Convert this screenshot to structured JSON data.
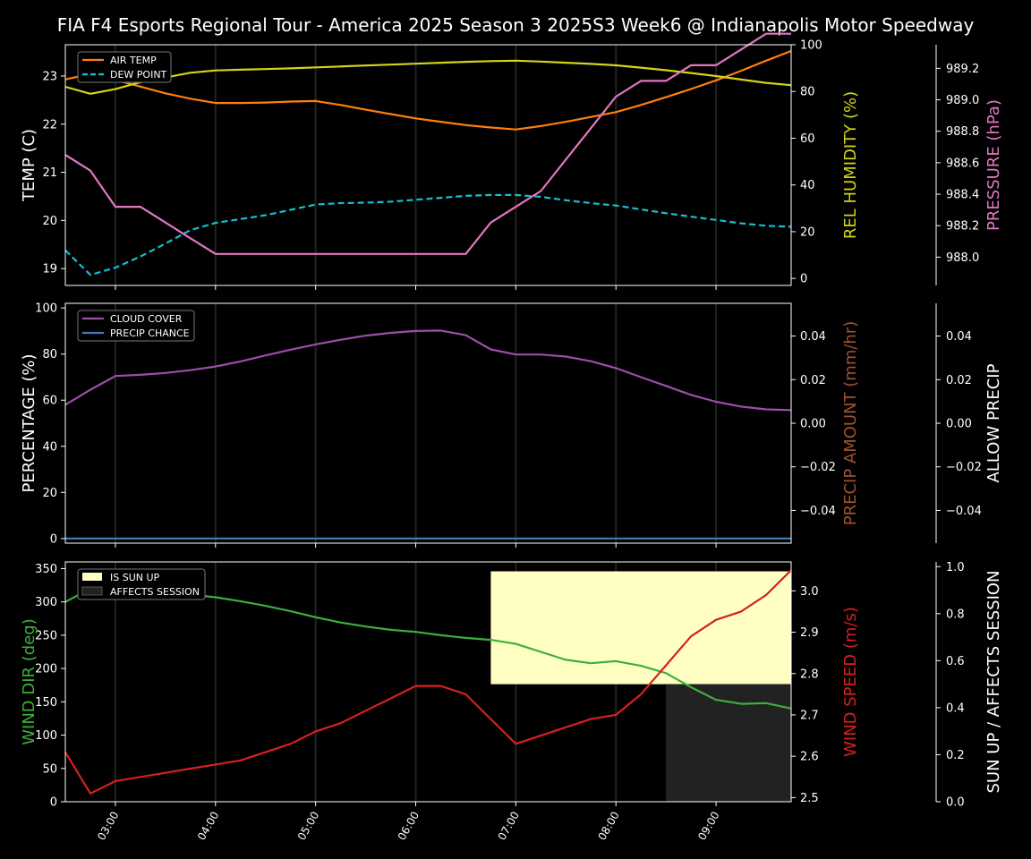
{
  "title": "FIA F4 Esports Regional Tour - America 2025 Season 3 2025S3 Week6 @ Indianapolis Motor Speedway",
  "colors": {
    "background": "#000000",
    "axis": "#ffffff",
    "air_temp": "#ff7f0e",
    "dew_point": "#17becf",
    "humidity": "#d4d419",
    "pressure": "#e377c2",
    "cloud": "#9b4fa8",
    "precip_chance": "#3d7fbf",
    "precip_amount": "#a0522d",
    "wind_dir": "#3cb03c",
    "wind_speed": "#d62020",
    "sun_up": "#ffffc4",
    "affects_session": "#222222"
  },
  "x_ticks": [
    "03:00",
    "04:00",
    "05:00",
    "06:00",
    "07:00",
    "08:00",
    "09:00"
  ],
  "chart_data": [
    {
      "type": "line",
      "x_hours": [
        2.5,
        2.75,
        3.0,
        3.25,
        3.5,
        3.75,
        4.0,
        4.25,
        4.5,
        4.75,
        5.0,
        5.25,
        5.5,
        5.75,
        6.0,
        6.25,
        6.5,
        6.75,
        7.0,
        7.25,
        7.5,
        7.75,
        8.0,
        8.25,
        8.5,
        8.75,
        9.0,
        9.25,
        9.5,
        9.75
      ],
      "xlim": [
        2.5,
        9.75
      ],
      "ylabel": "TEMP (C)",
      "ylim": [
        18.65,
        23.65
      ],
      "yticks": [
        19,
        20,
        21,
        22,
        23
      ],
      "y2label": "REL HUMIDITY (%)",
      "y2lim": [
        -3,
        100
      ],
      "y2ticks": [
        0,
        20,
        40,
        60,
        80,
        100
      ],
      "y3label": "PRESSURE (hPa)",
      "y3lim": [
        987.82,
        989.35
      ],
      "y3ticks": [
        "988.0",
        "988.2",
        "988.4",
        "988.6",
        "988.8",
        "989.0",
        "989.2"
      ],
      "legend": "top-left",
      "series": [
        {
          "name": "AIR TEMP",
          "axis": "left",
          "style": "solid",
          "color": "air_temp",
          "values": [
            22.93,
            23.04,
            22.92,
            22.78,
            22.64,
            22.53,
            22.44,
            22.44,
            22.45,
            22.47,
            22.48,
            22.4,
            22.3,
            22.21,
            22.12,
            22.05,
            21.98,
            21.93,
            21.89,
            21.96,
            22.05,
            22.15,
            22.25,
            22.4,
            22.56,
            22.73,
            22.91,
            23.11,
            23.32,
            23.52
          ]
        },
        {
          "name": "DEW POINT",
          "axis": "left",
          "style": "dashed",
          "color": "dew_point",
          "values": [
            19.38,
            18.87,
            19.02,
            19.25,
            19.52,
            19.8,
            19.95,
            20.03,
            20.11,
            20.22,
            20.33,
            20.36,
            20.37,
            20.39,
            20.43,
            20.47,
            20.51,
            20.53,
            20.53,
            20.49,
            20.42,
            20.36,
            20.31,
            20.23,
            20.15,
            20.08,
            20.01,
            19.94,
            19.89,
            19.87
          ]
        },
        {
          "name": "REL HUMIDITY",
          "axis": "right1",
          "style": "solid",
          "color": "humidity",
          "values": [
            82,
            79,
            81,
            84,
            86,
            88,
            89,
            89.3,
            89.6,
            89.9,
            90.3,
            90.7,
            91.1,
            91.5,
            91.9,
            92.3,
            92.7,
            93,
            93.2,
            92.8,
            92.3,
            91.8,
            91.2,
            90.2,
            89.1,
            87.9,
            86.6,
            85.1,
            83.7,
            82.7
          ]
        },
        {
          "name": "PRESSURE",
          "axis": "right2",
          "style": "solid",
          "color": "pressure",
          "values": [
            988.65,
            988.55,
            988.32,
            988.32,
            988.22,
            988.12,
            988.02,
            988.02,
            988.02,
            988.02,
            988.02,
            988.02,
            988.02,
            988.02,
            988.02,
            988.02,
            988.02,
            988.22,
            988.32,
            988.42,
            988.62,
            988.82,
            989.02,
            989.12,
            989.12,
            989.22,
            989.22,
            989.32,
            989.42,
            989.42
          ]
        }
      ]
    },
    {
      "type": "line",
      "x_hours": [
        2.5,
        2.75,
        3.0,
        3.25,
        3.5,
        3.75,
        4.0,
        4.25,
        4.5,
        4.75,
        5.0,
        5.25,
        5.5,
        5.75,
        6.0,
        6.25,
        6.5,
        6.75,
        7.0,
        7.25,
        7.5,
        7.75,
        8.0,
        8.25,
        8.5,
        8.75,
        9.0,
        9.25,
        9.5,
        9.75
      ],
      "xlim": [
        2.5,
        9.75
      ],
      "ylabel": "PERCENTAGE (%)",
      "ylim": [
        -2,
        102
      ],
      "yticks": [
        0,
        20,
        40,
        60,
        80,
        100
      ],
      "y2label": "PRECIP AMOUNT (mm/hr)",
      "y2lim": [
        -0.055,
        0.055
      ],
      "y2ticks": [
        "−0.04",
        "−0.02",
        "0.00",
        "0.02",
        "0.04"
      ],
      "y3label": "ALLOW PRECIP",
      "y3lim": [
        -0.055,
        0.055
      ],
      "y3ticks": [
        "−0.04",
        "−0.02",
        "0.00",
        "0.02",
        "0.04"
      ],
      "legend": "top-left",
      "series": [
        {
          "name": "CLOUD COVER",
          "axis": "left",
          "style": "solid",
          "color": "cloud",
          "values": [
            58,
            64.5,
            70.5,
            71,
            71.8,
            73,
            74.6,
            76.8,
            79.4,
            81.9,
            84.2,
            86.2,
            88,
            89.2,
            90,
            90.2,
            88.2,
            82,
            79.8,
            79.8,
            78.9,
            76.9,
            73.9,
            70,
            66.2,
            62.3,
            59.3,
            57.2,
            56,
            55.7
          ]
        },
        {
          "name": "PRECIP CHANCE",
          "axis": "left",
          "style": "solid",
          "color": "precip_chance",
          "values": [
            0,
            0,
            0,
            0,
            0,
            0,
            0,
            0,
            0,
            0,
            0,
            0,
            0,
            0,
            0,
            0,
            0,
            0,
            0,
            0,
            0,
            0,
            0,
            0,
            0,
            0,
            0,
            0,
            0,
            0
          ]
        }
      ]
    },
    {
      "type": "line",
      "x_hours": [
        2.5,
        2.75,
        3.0,
        3.25,
        3.5,
        3.75,
        4.0,
        4.25,
        4.5,
        4.75,
        5.0,
        5.25,
        5.5,
        5.75,
        6.0,
        6.25,
        6.5,
        6.75,
        7.0,
        7.25,
        7.5,
        7.75,
        8.0,
        8.25,
        8.5,
        8.75,
        9.0,
        9.25,
        9.5,
        9.75
      ],
      "xlim": [
        2.5,
        9.75
      ],
      "ylabel": "WIND DIR (deg)",
      "ylim": [
        0,
        360
      ],
      "yticks": [
        0,
        50,
        100,
        150,
        200,
        250,
        300,
        350
      ],
      "y2label": "WIND SPEED (m/s)",
      "y2lim": [
        2.49,
        3.07
      ],
      "y2ticks": [
        "2.5",
        "2.6",
        "2.7",
        "2.8",
        "2.9",
        "3.0"
      ],
      "y3label": "SUN UP / AFFECTS SESSION",
      "y3lim": [
        0,
        1.02
      ],
      "y3ticks": [
        "0.0",
        "0.2",
        "0.4",
        "0.6",
        "0.8",
        "1.0"
      ],
      "legend": "top-left",
      "bands": [
        {
          "name": "IS SUN UP",
          "color": "sun_up",
          "x_start": 6.75,
          "x_end": 9.75,
          "y_from": 0.5,
          "y_to": 0.98
        },
        {
          "name": "AFFECTS SESSION",
          "color": "affects_session",
          "x_start": 8.5,
          "x_end": 9.75,
          "y_from": 0,
          "y_to": 0.5
        }
      ],
      "series": [
        {
          "name": "WIND DIR",
          "axis": "left",
          "style": "solid",
          "color": "wind_dir",
          "values": [
            300,
            320,
            321,
            318,
            314,
            311,
            307,
            301,
            294,
            286,
            277,
            269,
            263,
            258,
            255,
            250,
            246,
            243,
            237,
            225,
            213,
            208,
            211,
            204,
            193,
            172,
            153,
            147,
            148,
            140
          ]
        },
        {
          "name": "WIND SPEED",
          "axis": "right1",
          "style": "solid",
          "color": "wind_speed",
          "values": [
            2.61,
            2.51,
            2.54,
            2.55,
            2.56,
            2.57,
            2.58,
            2.59,
            2.61,
            2.63,
            2.66,
            2.68,
            2.71,
            2.74,
            2.77,
            2.77,
            2.75,
            2.69,
            2.63,
            2.65,
            2.67,
            2.69,
            2.7,
            2.75,
            2.82,
            2.89,
            2.93,
            2.95,
            2.99,
            3.05
          ]
        }
      ]
    }
  ]
}
